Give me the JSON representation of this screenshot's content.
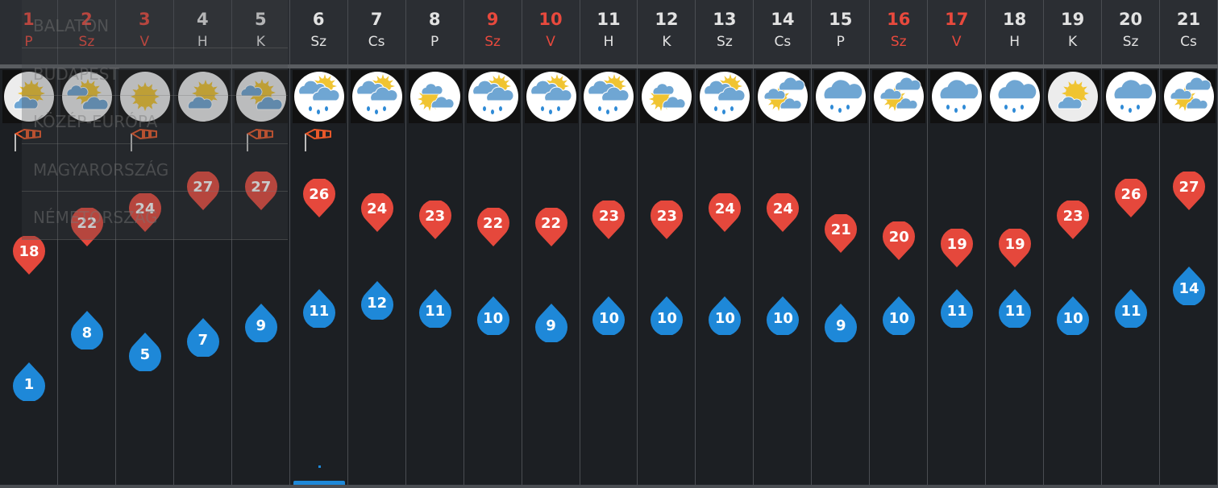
{
  "colors": {
    "weekend": "#e8493d",
    "max_pin": "#e5483c",
    "min_pin": "#1e88d8",
    "wind": "#e8582a"
  },
  "days": [
    {
      "num": "1",
      "dow": "P",
      "red": true,
      "icon": "partly-sunny",
      "wind": true,
      "max": 18,
      "min": 1
    },
    {
      "num": "2",
      "dow": "Sz",
      "red": true,
      "icon": "mostly-cloudy",
      "wind": false,
      "max": 22,
      "min": 8
    },
    {
      "num": "3",
      "dow": "V",
      "red": true,
      "icon": "sunny",
      "wind": true,
      "max": 24,
      "min": 5
    },
    {
      "num": "4",
      "dow": "H",
      "red": false,
      "icon": "partly-sunny",
      "wind": false,
      "max": 27,
      "min": 7
    },
    {
      "num": "5",
      "dow": "K",
      "red": false,
      "icon": "mostly-cloudy",
      "wind": true,
      "max": 27,
      "min": 9
    },
    {
      "num": "6",
      "dow": "Sz",
      "red": false,
      "icon": "rain-sun",
      "wind": true,
      "max": 26,
      "min": 11
    },
    {
      "num": "7",
      "dow": "Cs",
      "red": false,
      "icon": "rain-sun",
      "wind": false,
      "max": 24,
      "min": 12
    },
    {
      "num": "8",
      "dow": "P",
      "red": false,
      "icon": "cloud-sun",
      "wind": false,
      "max": 23,
      "min": 11
    },
    {
      "num": "9",
      "dow": "Sz",
      "red": true,
      "icon": "rain-sun",
      "wind": false,
      "max": 22,
      "min": 10
    },
    {
      "num": "10",
      "dow": "V",
      "red": true,
      "icon": "rain-sun",
      "wind": false,
      "max": 22,
      "min": 9
    },
    {
      "num": "11",
      "dow": "H",
      "red": false,
      "icon": "rain-sun",
      "wind": false,
      "max": 23,
      "min": 10
    },
    {
      "num": "12",
      "dow": "K",
      "red": false,
      "icon": "cloud-sun",
      "wind": false,
      "max": 23,
      "min": 10
    },
    {
      "num": "13",
      "dow": "Sz",
      "red": false,
      "icon": "rain-sun",
      "wind": false,
      "max": 24,
      "min": 10
    },
    {
      "num": "14",
      "dow": "Cs",
      "red": false,
      "icon": "clouds-sun",
      "wind": false,
      "max": 24,
      "min": 10
    },
    {
      "num": "15",
      "dow": "P",
      "red": false,
      "icon": "rain",
      "wind": false,
      "max": 21,
      "min": 9
    },
    {
      "num": "16",
      "dow": "Sz",
      "red": true,
      "icon": "clouds-sun",
      "wind": false,
      "max": 20,
      "min": 10
    },
    {
      "num": "17",
      "dow": "V",
      "red": true,
      "icon": "rain",
      "wind": false,
      "max": 19,
      "min": 11
    },
    {
      "num": "18",
      "dow": "H",
      "red": false,
      "icon": "rain",
      "wind": false,
      "max": 19,
      "min": 11
    },
    {
      "num": "19",
      "dow": "K",
      "red": false,
      "icon": "partly-sunny",
      "wind": false,
      "max": 23,
      "min": 10
    },
    {
      "num": "20",
      "dow": "Sz",
      "red": false,
      "icon": "rain",
      "wind": false,
      "max": 26,
      "min": 11
    },
    {
      "num": "21",
      "dow": "Cs",
      "red": false,
      "icon": "clouds-sun",
      "wind": false,
      "max": 27,
      "min": 14
    }
  ],
  "region_menu": {
    "items": [
      "BALATON",
      "BUDAPEST",
      "KÖZÉP-EURÓPA",
      "MAGYARORSZÁG",
      "NÉMETORSZÁG"
    ]
  }
}
